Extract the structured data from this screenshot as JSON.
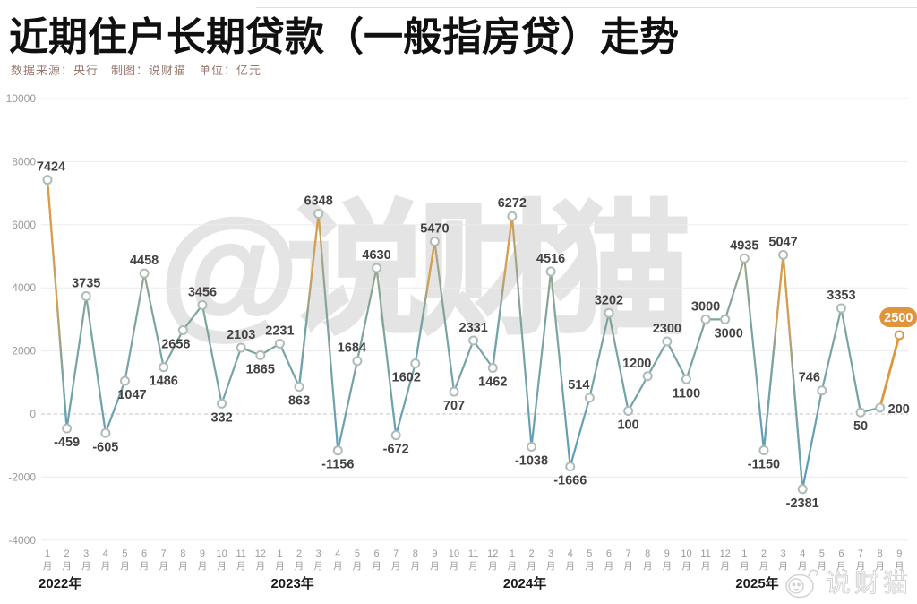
{
  "title": "近期住户长期贷款（一般指房贷）走势",
  "subtitle": "数据来源：央行　制图：说财猫　单位：亿元",
  "watermark_center": "@说财猫",
  "watermark_corner": "说财猫",
  "colors": {
    "title": "#101010",
    "subtitle": "#98796f",
    "grid": "#ececec",
    "zero_line": "#c3c3c3",
    "axis_text": "#9a9a9a",
    "year_text": "#1a1a1a",
    "value_label": "#424242",
    "marker_ring": "#aebcb8",
    "highlight_orange": "#e0953c",
    "line_top_orange": "#e39735",
    "line_mid_teal": "#7ca49e",
    "line_bottom_blue": "#4e94c2"
  },
  "chart_data": {
    "type": "line",
    "title": "近期住户长期贷款（一般指房贷）走势",
    "unit": "亿元",
    "ylabel": "",
    "xlabel": "",
    "ylim": [
      -4000,
      10000
    ],
    "y_ticks": [
      10000,
      8000,
      6000,
      4000,
      2000,
      0,
      -2000,
      -4000
    ],
    "grid": true,
    "legend_position": "none",
    "year_labels": [
      {
        "label": "2022年",
        "start_month_index": 0
      },
      {
        "label": "2023年",
        "start_month_index": 12
      },
      {
        "label": "2024年",
        "start_month_index": 24
      },
      {
        "label": "2025年",
        "start_month_index": 36
      }
    ],
    "month_suffix": "月",
    "points": [
      {
        "year": "2022",
        "month": "1",
        "value": 7424,
        "label_side": "above",
        "dx": 4
      },
      {
        "year": "2022",
        "month": "2",
        "value": -459,
        "label_side": "below",
        "dx": 0
      },
      {
        "year": "2022",
        "month": "3",
        "value": 3735,
        "label_side": "above",
        "dx": 0
      },
      {
        "year": "2022",
        "month": "4",
        "value": -605,
        "label_side": "below",
        "dx": 0
      },
      {
        "year": "2022",
        "month": "5",
        "value": 1047,
        "label_side": "below",
        "dx": 8
      },
      {
        "year": "2022",
        "month": "6",
        "value": 4458,
        "label_side": "above",
        "dx": 0
      },
      {
        "year": "2022",
        "month": "7",
        "value": 1486,
        "label_side": "below",
        "dx": 0
      },
      {
        "year": "2022",
        "month": "8",
        "value": 2658,
        "label_side": "below",
        "dx": -8
      },
      {
        "year": "2022",
        "month": "9",
        "value": 3456,
        "label_side": "above",
        "dx": 0
      },
      {
        "year": "2022",
        "month": "10",
        "value": 332,
        "label_side": "below",
        "dx": 0
      },
      {
        "year": "2022",
        "month": "11",
        "value": 2103,
        "label_side": "above",
        "dx": 0
      },
      {
        "year": "2022",
        "month": "12",
        "value": 1865,
        "label_side": "below",
        "dx": 0
      },
      {
        "year": "2023",
        "month": "1",
        "value": 2231,
        "label_side": "above",
        "dx": 0
      },
      {
        "year": "2023",
        "month": "2",
        "value": 863,
        "label_side": "below",
        "dx": 0
      },
      {
        "year": "2023",
        "month": "3",
        "value": 6348,
        "label_side": "above",
        "dx": 0
      },
      {
        "year": "2023",
        "month": "4",
        "value": -1156,
        "label_side": "below",
        "dx": 0
      },
      {
        "year": "2023",
        "month": "5",
        "value": 1684,
        "label_side": "above",
        "dx": -6
      },
      {
        "year": "2023",
        "month": "6",
        "value": 4630,
        "label_side": "above",
        "dx": 0
      },
      {
        "year": "2023",
        "month": "7",
        "value": -672,
        "label_side": "below",
        "dx": 0
      },
      {
        "year": "2023",
        "month": "8",
        "value": 1602,
        "label_side": "below",
        "dx": -10
      },
      {
        "year": "2023",
        "month": "9",
        "value": 5470,
        "label_side": "above",
        "dx": 0
      },
      {
        "year": "2023",
        "month": "10",
        "value": 707,
        "label_side": "below",
        "dx": 0
      },
      {
        "year": "2023",
        "month": "11",
        "value": 2331,
        "label_side": "above",
        "dx": 0
      },
      {
        "year": "2023",
        "month": "12",
        "value": 1462,
        "label_side": "below",
        "dx": 0
      },
      {
        "year": "2024",
        "month": "1",
        "value": 6272,
        "label_side": "above",
        "dx": 0
      },
      {
        "year": "2024",
        "month": "2",
        "value": -1038,
        "label_side": "below",
        "dx": 0
      },
      {
        "year": "2024",
        "month": "3",
        "value": 4516,
        "label_side": "above",
        "dx": 0
      },
      {
        "year": "2024",
        "month": "4",
        "value": -1666,
        "label_side": "below",
        "dx": 0
      },
      {
        "year": "2024",
        "month": "5",
        "value": 514,
        "label_side": "above",
        "dx": -12
      },
      {
        "year": "2024",
        "month": "6",
        "value": 3202,
        "label_side": "above",
        "dx": 0
      },
      {
        "year": "2024",
        "month": "7",
        "value": 100,
        "label_side": "below",
        "dx": 0
      },
      {
        "year": "2024",
        "month": "8",
        "value": 1200,
        "label_side": "above",
        "dx": -12
      },
      {
        "year": "2024",
        "month": "9",
        "value": 2300,
        "label_side": "above",
        "dx": 0
      },
      {
        "year": "2024",
        "month": "10",
        "value": 1100,
        "label_side": "below",
        "dx": 0
      },
      {
        "year": "2024",
        "month": "11",
        "value": 3000,
        "label_side": "above",
        "dx": 0
      },
      {
        "year": "2024",
        "month": "12",
        "value": 3000,
        "label_side": "below",
        "dx": 4
      },
      {
        "year": "2025",
        "month": "1",
        "value": 4935,
        "label_side": "above",
        "dx": 0
      },
      {
        "year": "2025",
        "month": "2",
        "value": -1150,
        "label_side": "below",
        "dx": 0
      },
      {
        "year": "2025",
        "month": "3",
        "value": 5047,
        "label_side": "above",
        "dx": 0
      },
      {
        "year": "2025",
        "month": "4",
        "value": -2381,
        "label_side": "below",
        "dx": 0
      },
      {
        "year": "2025",
        "month": "5",
        "value": 746,
        "label_side": "above",
        "dx": -14
      },
      {
        "year": "2025",
        "month": "6",
        "value": 3353,
        "label_side": "above",
        "dx": 0
      },
      {
        "year": "2025",
        "month": "7",
        "value": 50,
        "label_side": "below",
        "dx": 0
      },
      {
        "year": "2025",
        "month": "8",
        "value": 200,
        "label_side": "right",
        "dx": 0
      },
      {
        "year": "2025",
        "month": "9",
        "value": 2500,
        "label_side": "badge",
        "dx": 0
      }
    ]
  }
}
